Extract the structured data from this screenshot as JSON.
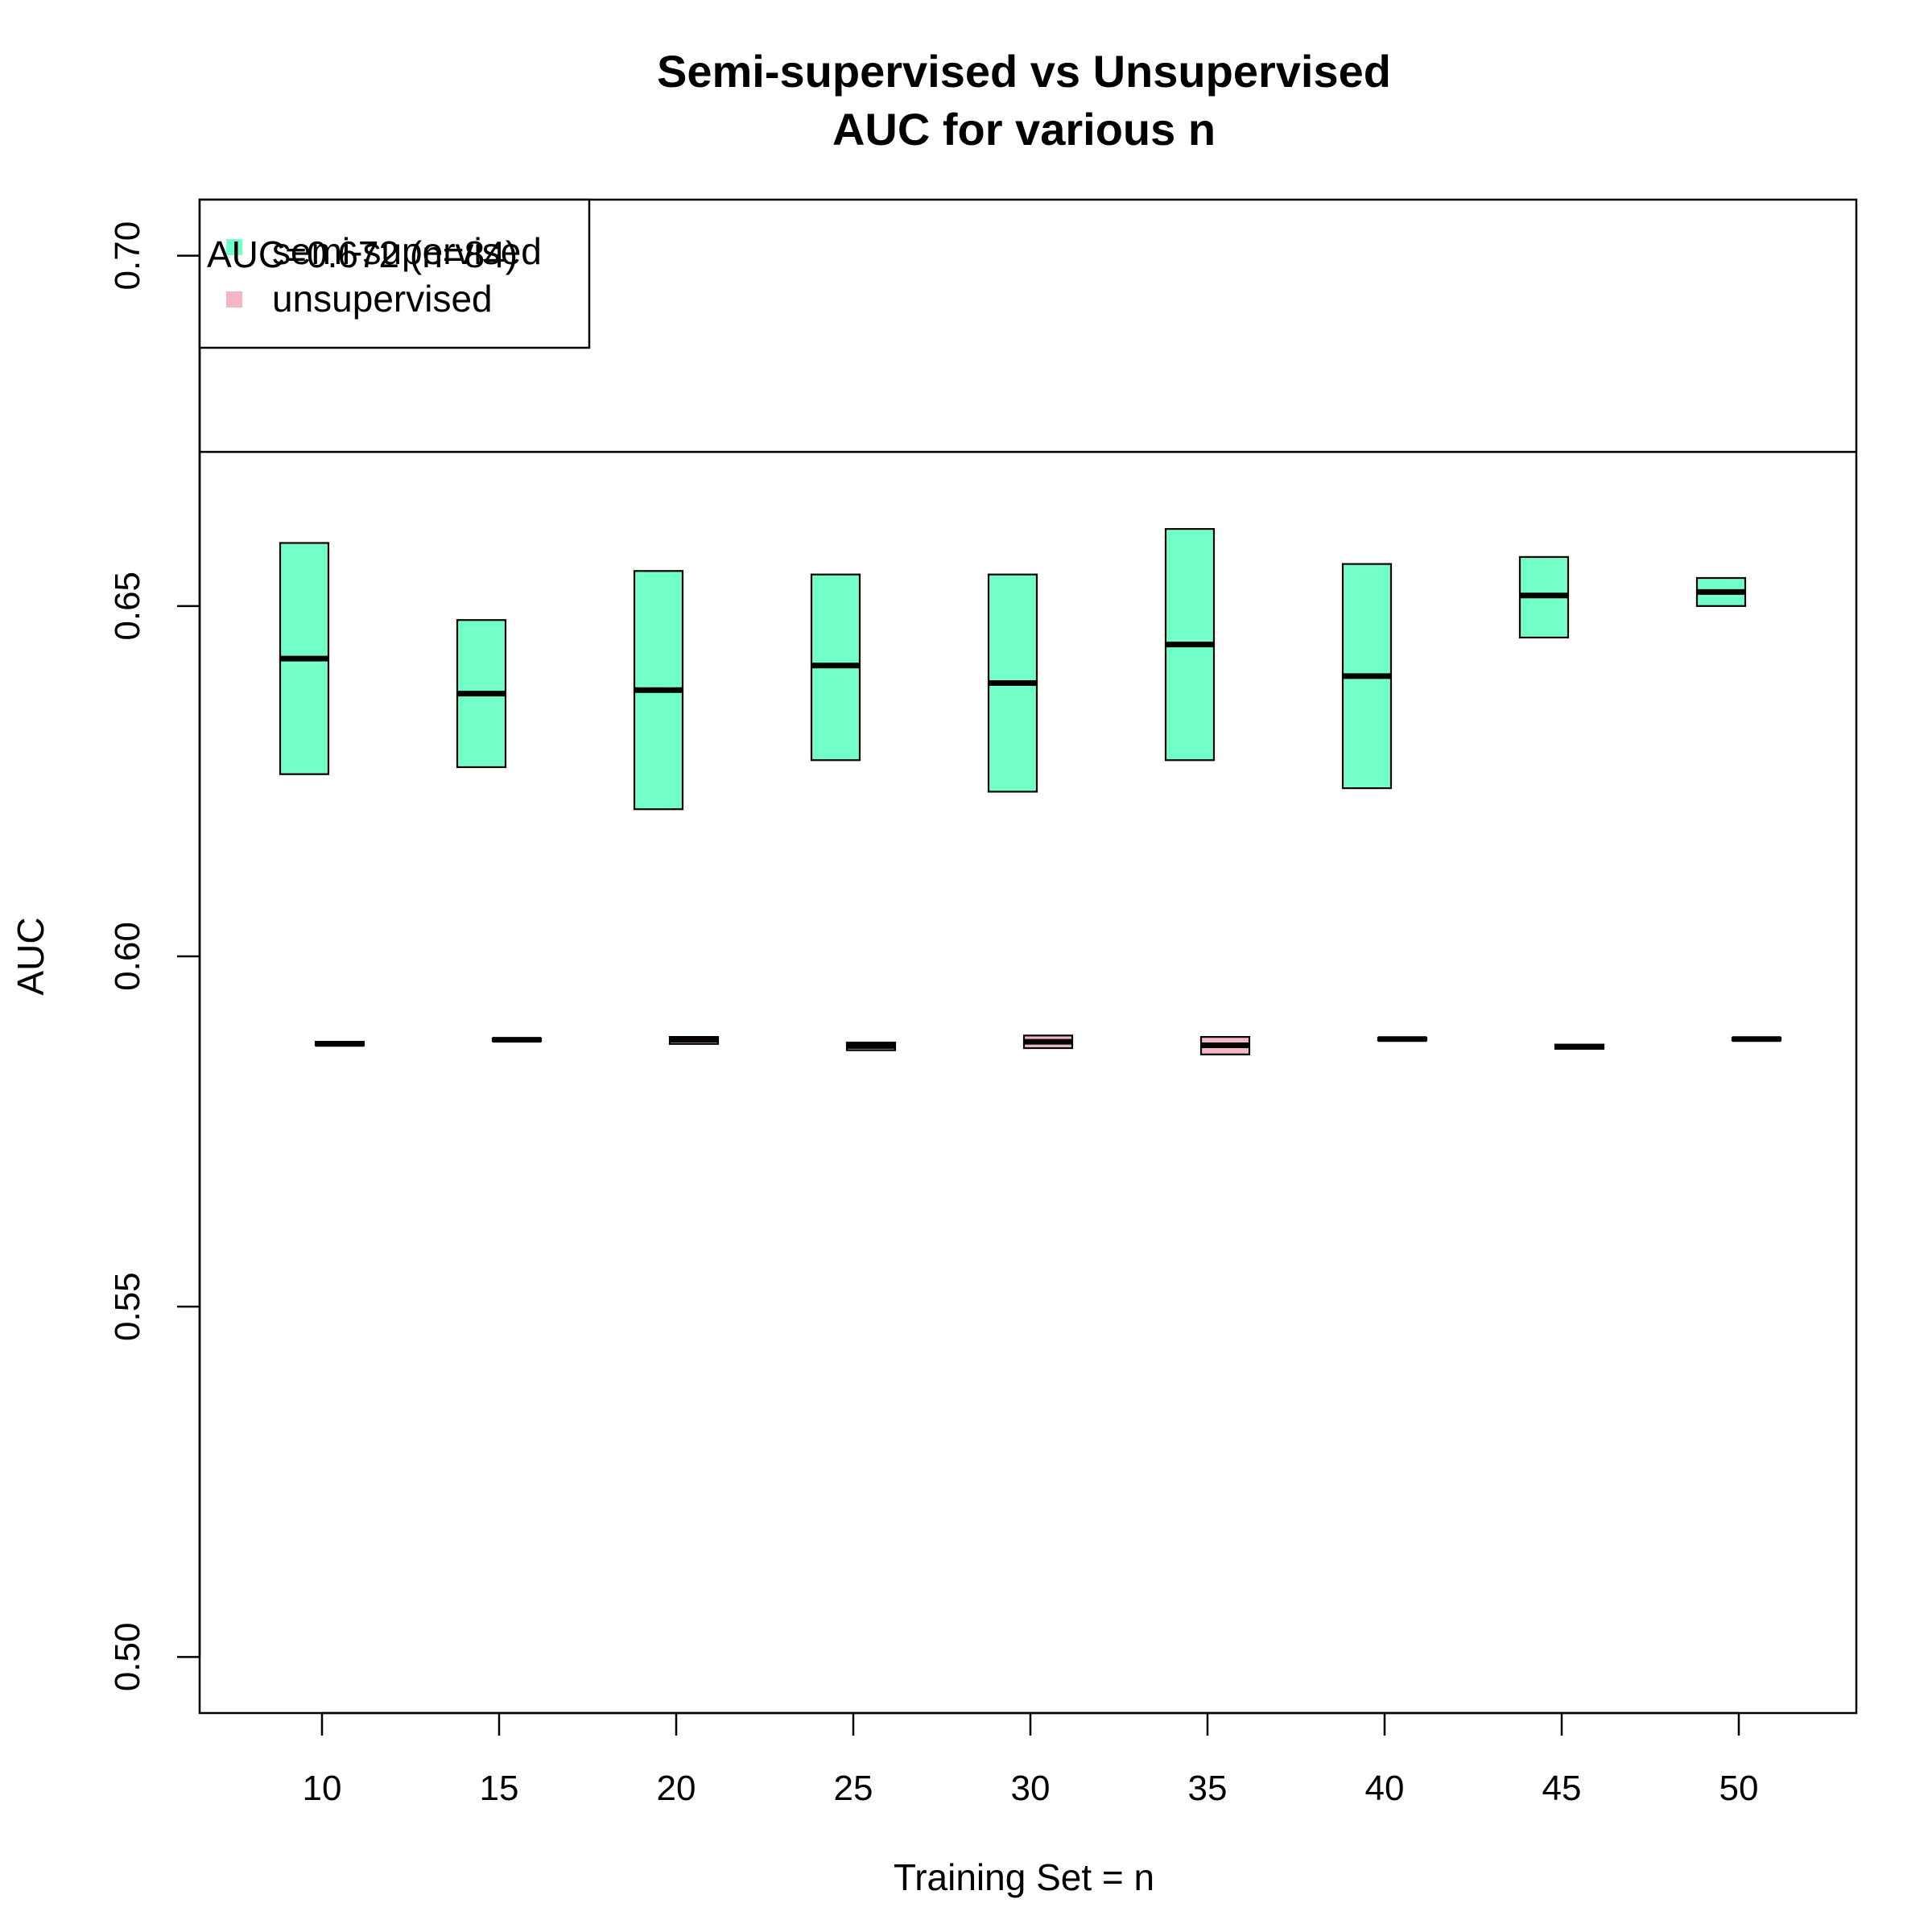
{
  "colors": {
    "semi": "#72FFC8",
    "unsup": "#F4B6C2",
    "stroke": "#000000",
    "background": "#FFFFFF"
  },
  "chart_data": {
    "type": "boxplot",
    "title": "Semi-supervised vs Unsupervised",
    "subtitle": "AUC for various n",
    "xlabel": "Training Set = n",
    "ylabel": "AUC",
    "ylim": [
      0.492,
      0.708
    ],
    "y_ticks": [
      0.5,
      0.55,
      0.6,
      0.65,
      0.7
    ],
    "y_tick_labels": [
      "0.50",
      "0.55",
      "0.60",
      "0.65",
      "0.70"
    ],
    "categories": [
      "10",
      "15",
      "20",
      "25",
      "30",
      "35",
      "40",
      "45",
      "50"
    ],
    "reference_line": {
      "value": 0.672,
      "label": "AUC=0.672 (n=84)"
    },
    "legend": {
      "position": "top-left",
      "entries": [
        "semi-supervised",
        "unsupervised"
      ]
    },
    "series": [
      {
        "name": "semi-supervised",
        "color_key": "semi",
        "boxes": [
          {
            "n": "10",
            "q1": 0.626,
            "median": 0.6425,
            "q3": 0.659
          },
          {
            "n": "15",
            "q1": 0.627,
            "median": 0.6375,
            "q3": 0.648
          },
          {
            "n": "20",
            "q1": 0.621,
            "median": 0.638,
            "q3": 0.655
          },
          {
            "n": "25",
            "q1": 0.628,
            "median": 0.6415,
            "q3": 0.6545
          },
          {
            "n": "30",
            "q1": 0.6235,
            "median": 0.639,
            "q3": 0.6545
          },
          {
            "n": "35",
            "q1": 0.628,
            "median": 0.6445,
            "q3": 0.661
          },
          {
            "n": "40",
            "q1": 0.624,
            "median": 0.64,
            "q3": 0.656
          },
          {
            "n": "45",
            "q1": 0.6455,
            "median": 0.6515,
            "q3": 0.657
          },
          {
            "n": "50",
            "q1": 0.65,
            "median": 0.652,
            "q3": 0.654
          }
        ]
      },
      {
        "name": "unsupervised",
        "color_key": "unsup",
        "boxes": [
          {
            "n": "10",
            "q1": 0.5873,
            "median": 0.5875,
            "q3": 0.5878
          },
          {
            "n": "15",
            "q1": 0.5879,
            "median": 0.5881,
            "q3": 0.5883
          },
          {
            "n": "20",
            "q1": 0.5875,
            "median": 0.5881,
            "q3": 0.5885
          },
          {
            "n": "25",
            "q1": 0.5866,
            "median": 0.5872,
            "q3": 0.5877
          },
          {
            "n": "30",
            "q1": 0.5869,
            "median": 0.5878,
            "q3": 0.5887
          },
          {
            "n": "35",
            "q1": 0.586,
            "median": 0.5873,
            "q3": 0.5885
          },
          {
            "n": "40",
            "q1": 0.588,
            "median": 0.5882,
            "q3": 0.5884
          },
          {
            "n": "45",
            "q1": 0.5868,
            "median": 0.5871,
            "q3": 0.5874
          },
          {
            "n": "50",
            "q1": 0.588,
            "median": 0.5882,
            "q3": 0.5884
          }
        ]
      }
    ]
  }
}
